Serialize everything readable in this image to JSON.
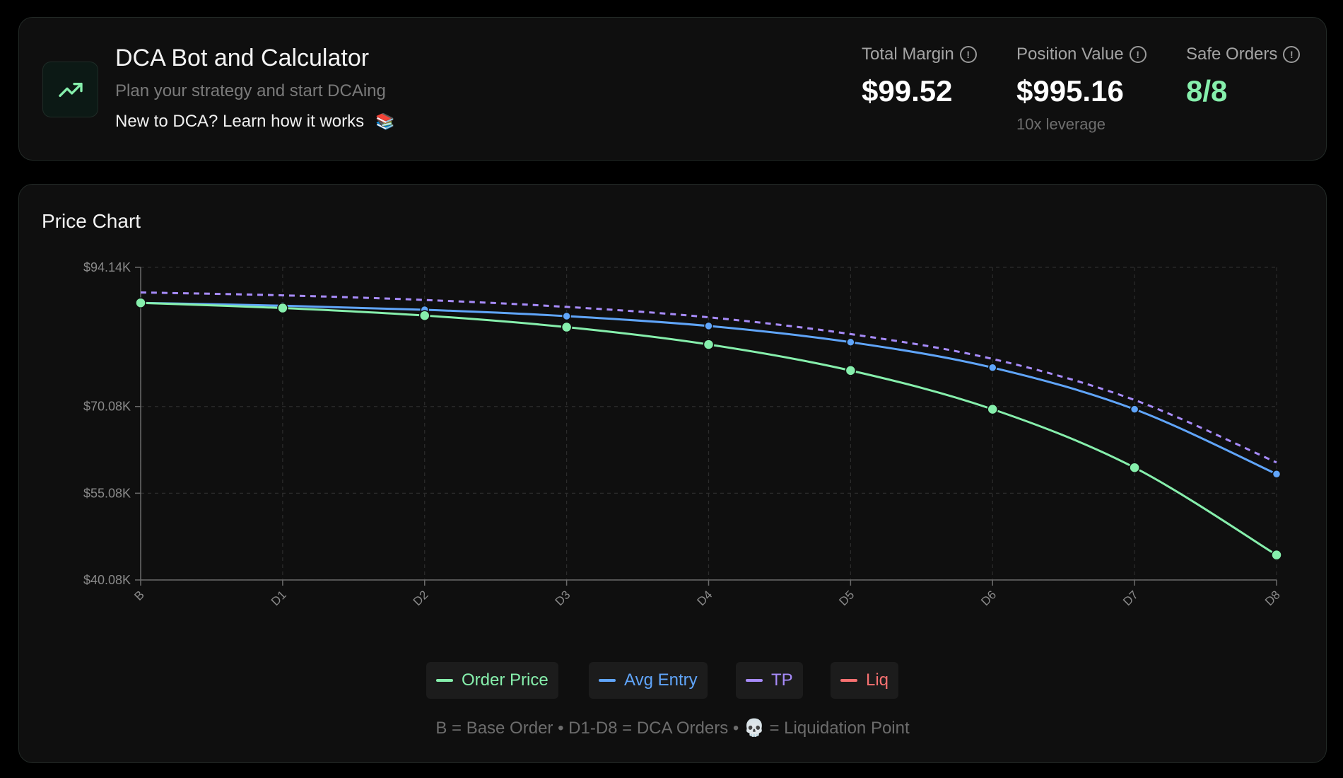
{
  "header": {
    "title": "DCA Bot and Calculator",
    "subtitle": "Plan your strategy and start DCAing",
    "learn_link": "New to DCA? Learn how it works",
    "learn_emoji": "📚",
    "logo_icon": "trending-up-icon",
    "stats": {
      "total_margin": {
        "label": "Total Margin",
        "value": "$99.52"
      },
      "position_value": {
        "label": "Position Value",
        "value": "$995.16",
        "sub": "10x leverage"
      },
      "safe_orders": {
        "label": "Safe Orders",
        "value": "8/8"
      }
    }
  },
  "chart": {
    "title": "Price Chart",
    "footnote": "B = Base Order • D1-D8 = DCA Orders • 💀 = Liquidation Point",
    "legend": [
      {
        "label": "Order Price",
        "color": "#86efac"
      },
      {
        "label": "Avg Entry",
        "color": "#60a5fa"
      },
      {
        "label": "TP",
        "color": "#a78bfa"
      },
      {
        "label": "Liq",
        "color": "#f87171"
      }
    ]
  },
  "chart_data": {
    "type": "line",
    "title": "Price Chart",
    "x": [
      "B",
      "D1",
      "D2",
      "D3",
      "D4",
      "D5",
      "D6",
      "D7",
      "D8"
    ],
    "y_ticks": [
      "$94.14K",
      "$70.08K",
      "$55.08K",
      "$40.08K"
    ],
    "y_tick_values": [
      94140,
      70080,
      55080,
      40080
    ],
    "ylim": [
      40080,
      94140
    ],
    "grid": true,
    "legend_position": "bottom",
    "series": [
      {
        "name": "Order Price",
        "color": "#86efac",
        "dashed": false,
        "values": [
          88000,
          87100,
          85800,
          83800,
          80800,
          76300,
          69600,
          59500,
          44400
        ]
      },
      {
        "name": "Avg Entry",
        "color": "#60a5fa",
        "dashed": false,
        "values": [
          88000,
          87500,
          86800,
          85700,
          84000,
          81200,
          76800,
          69600,
          58400
        ]
      },
      {
        "name": "TP",
        "color": "#a78bfa",
        "dashed": true,
        "values": [
          89800,
          89300,
          88500,
          87300,
          85500,
          82600,
          78300,
          71200,
          60400
        ]
      }
    ]
  },
  "colors": {
    "accent_green": "#86efac",
    "background": "#000000",
    "card": "#0f0f0f"
  }
}
